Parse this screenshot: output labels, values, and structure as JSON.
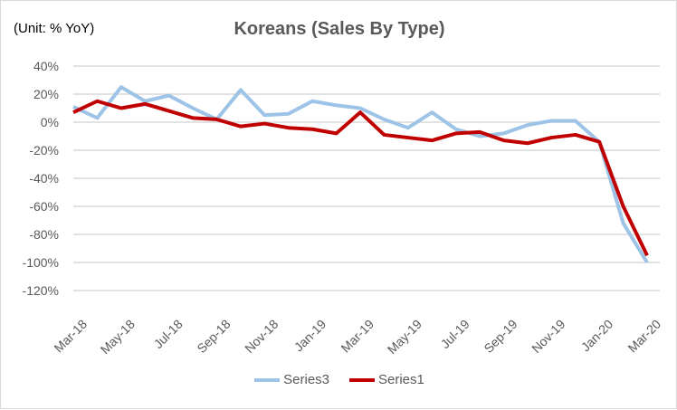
{
  "chart_data": {
    "type": "line",
    "title": "Koreans (Sales By Type)",
    "unit_label": "(Unit: % YoY)",
    "ylim": [
      -120,
      40
    ],
    "yticks": [
      40,
      20,
      0,
      -20,
      -40,
      -60,
      -80,
      -100,
      -120
    ],
    "ytick_labels": [
      "40%",
      "20%",
      "0%",
      "-20%",
      "-40%",
      "-60%",
      "-80%",
      "-100%",
      "-120%"
    ],
    "x": [
      "Mar-18",
      "Apr-18",
      "May-18",
      "Jun-18",
      "Jul-18",
      "Aug-18",
      "Sep-18",
      "Oct-18",
      "Nov-18",
      "Dec-18",
      "Jan-19",
      "Feb-19",
      "Mar-19",
      "Apr-19",
      "May-19",
      "Jun-19",
      "Jul-19",
      "Aug-19",
      "Sep-19",
      "Oct-19",
      "Nov-19",
      "Dec-19",
      "Jan-20",
      "Feb-20",
      "Mar-20"
    ],
    "xtick_labels": [
      "Mar-18",
      "May-18",
      "Jul-18",
      "Sep-18",
      "Nov-18",
      "Jan-19",
      "Mar-19",
      "May-19",
      "Jul-19",
      "Sep-19",
      "Nov-19",
      "Jan-20",
      "Mar-20"
    ],
    "grid": true,
    "legend_position": "bottom",
    "series": [
      {
        "name": "Series3",
        "color": "#9dc3e6",
        "values": [
          11,
          3,
          25,
          15,
          19,
          10,
          2,
          23,
          5,
          6,
          15,
          12,
          10,
          2,
          -4,
          7,
          -5,
          -10,
          -8,
          -2,
          1,
          1,
          -14,
          -72,
          -100
        ]
      },
      {
        "name": "Series1",
        "color": "#c00000",
        "values": [
          7,
          15,
          10,
          13,
          8,
          3,
          2,
          -3,
          -1,
          -4,
          -5,
          -8,
          7,
          -9,
          -11,
          -13,
          -8,
          -7,
          -13,
          -15,
          -11,
          -9,
          -14,
          -60,
          -95
        ]
      }
    ]
  }
}
